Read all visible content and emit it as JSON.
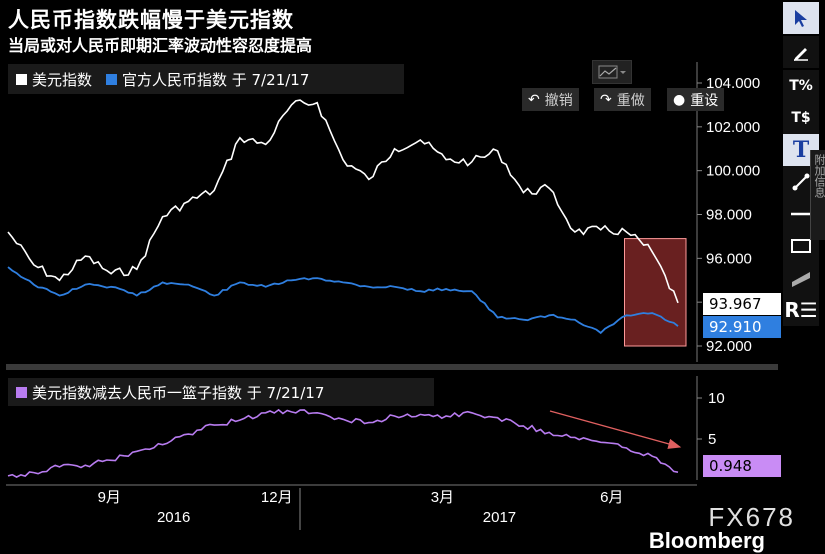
{
  "title": "人民币指数跌幅慢于美元指数",
  "subtitle": "当局或对人民币即期汇率波动性容忍度提高",
  "top_panel": {
    "legend": [
      {
        "label": "美元指数",
        "color": "#ffffff"
      },
      {
        "label": "官方人民币指数 于 7/21/17",
        "color": "#2f7fe0"
      }
    ],
    "value_tags": {
      "usd": {
        "text": "93.967",
        "bg": "#ffffff",
        "fg": "#000000"
      },
      "cny": {
        "text": "92.910",
        "bg": "#2f7fe0",
        "fg": "#ffffff"
      }
    }
  },
  "bottom_panel": {
    "legend": [
      {
        "label": "美元指数减去人民币一篮子指数 于 7/21/17",
        "color": "#b87cf0"
      }
    ],
    "value_tag": {
      "text": "0.948",
      "bg": "#c98cf5",
      "fg": "#000000"
    }
  },
  "controls": {
    "undo_label": "撤销",
    "redo_label": "重做",
    "reset_label": "重设"
  },
  "toolbar": {
    "items": [
      "pointer-icon",
      "pen-icon",
      "percent-icon",
      "dollar-icon",
      "text-icon",
      "line-icon",
      "horizontal-line-icon",
      "rectangle-icon",
      "band-icon",
      "r-icon"
    ],
    "side_tab": "附加信息"
  },
  "x_axis": {
    "month_ticks": [
      "9月",
      "12月",
      "3月",
      "6月"
    ],
    "year_labels": [
      "2016",
      "2017"
    ]
  },
  "watermark": "FX678",
  "brand": "Bloomberg",
  "colors": {
    "usd": "#ffffff",
    "cny": "#2f7fe0",
    "spread": "#b87cf0",
    "highlight_fill": "#c03a3a",
    "highlight_line": "#ff9a9a",
    "arrow": "#e06060"
  },
  "chart_data": [
    {
      "type": "line",
      "title": "",
      "x": [
        "2016-07-22",
        "2016-08-05",
        "2016-08-19",
        "2016-09-02",
        "2016-09-16",
        "2016-09-30",
        "2016-10-14",
        "2016-10-28",
        "2016-11-11",
        "2016-11-25",
        "2016-12-09",
        "2016-12-23",
        "2017-01-06",
        "2017-01-20",
        "2017-02-03",
        "2017-02-17",
        "2017-03-03",
        "2017-03-17",
        "2017-03-31",
        "2017-04-14",
        "2017-04-28",
        "2017-05-12",
        "2017-05-26",
        "2017-06-09",
        "2017-06-23",
        "2017-07-07",
        "2017-07-21"
      ],
      "series": [
        {
          "name": "美元指数",
          "values": [
            97.2,
            95.7,
            95.0,
            96.1,
            95.3,
            95.5,
            97.9,
            98.6,
            99.1,
            101.5,
            101.2,
            103.0,
            103.1,
            100.5,
            99.6,
            101.0,
            101.4,
            100.5,
            100.4,
            100.9,
            99.0,
            99.2,
            97.2,
            97.3,
            97.2,
            96.3,
            93.967
          ]
        },
        {
          "name": "官方人民币指数 于 7/21/17",
          "values": [
            95.6,
            94.8,
            94.3,
            94.8,
            94.7,
            94.3,
            94.9,
            94.8,
            94.3,
            94.9,
            94.7,
            95.0,
            95.1,
            94.9,
            94.7,
            94.7,
            94.5,
            94.6,
            94.5,
            93.3,
            93.2,
            93.4,
            93.2,
            92.6,
            93.4,
            93.5,
            92.91
          ]
        }
      ],
      "ylim": [
        92,
        104
      ],
      "yticks": [
        "92.000",
        "94.000",
        "96.000",
        "98.000",
        "100.000",
        "102.000",
        "104.000"
      ]
    },
    {
      "type": "line",
      "title": "",
      "x": [
        "2016-07-22",
        "2016-08-05",
        "2016-08-19",
        "2016-09-02",
        "2016-09-16",
        "2016-09-30",
        "2016-10-14",
        "2016-10-28",
        "2016-11-11",
        "2016-11-25",
        "2016-12-09",
        "2016-12-23",
        "2017-01-06",
        "2017-01-20",
        "2017-02-03",
        "2017-02-17",
        "2017-03-03",
        "2017-03-17",
        "2017-03-31",
        "2017-04-14",
        "2017-04-28",
        "2017-05-12",
        "2017-05-26",
        "2017-06-09",
        "2017-06-23",
        "2017-07-07",
        "2017-07-21"
      ],
      "series": [
        {
          "name": "美元指数减去人民币一篮子指数 于 7/21/17",
          "values": [
            0.5,
            0.9,
            1.6,
            1.8,
            2.4,
            3.5,
            4.3,
            5.6,
            6.7,
            7.3,
            8.2,
            8.3,
            8.2,
            7.4,
            7.0,
            7.8,
            8.0,
            7.8,
            8.2,
            7.6,
            6.6,
            5.8,
            5.2,
            4.6,
            3.9,
            2.9,
            0.948
          ]
        }
      ],
      "ylim": [
        0,
        10
      ],
      "yticks": [
        "5",
        "10"
      ]
    }
  ]
}
